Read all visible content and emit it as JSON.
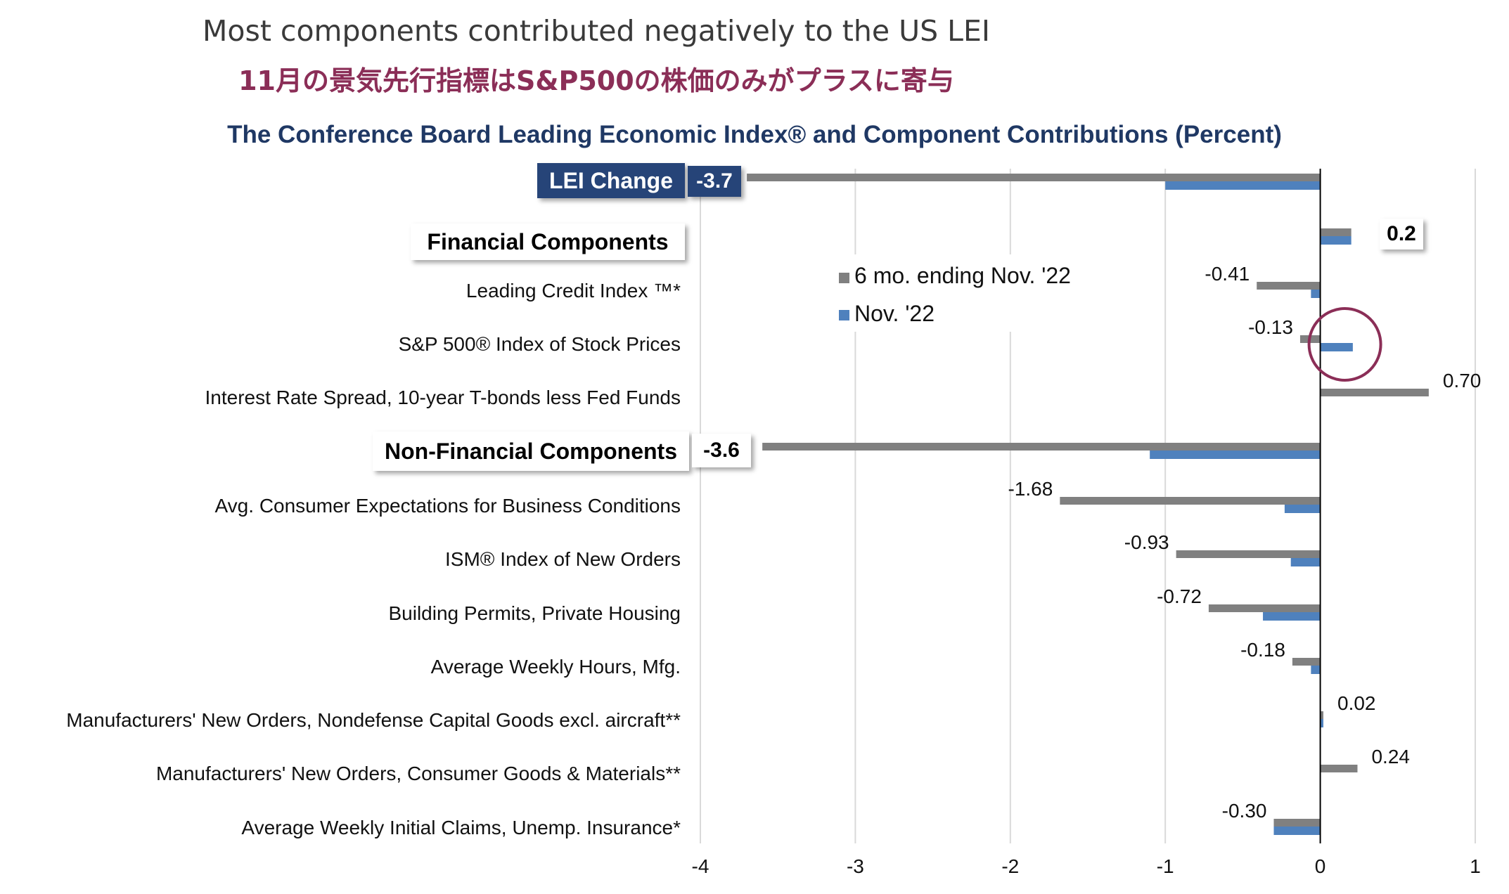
{
  "titles": {
    "main": "Most components contributed negatively to the US LEI",
    "jp": "11月の景気先行指標はS&P500の株価のみがプラスに寄与"
  },
  "chart_data": {
    "type": "bar",
    "orientation": "horizontal",
    "title": "The Conference Board Leading Economic Index® and Component Contributions (Percent)",
    "xlim": [
      -4,
      1
    ],
    "xticks": [
      "-4",
      "-3",
      "-2",
      "-1",
      "0",
      "1"
    ],
    "grid": true,
    "legend_position": "upper-middle",
    "categories": [
      "LEI Change",
      "Financial Components",
      "Leading Credit Index ™*",
      "S&P 500® Index of Stock Prices",
      "Interest Rate Spread, 10-year T-bonds less Fed Funds",
      "Non-Financial Components",
      "Avg. Consumer Expectations for Business Conditions",
      "ISM® Index of New Orders",
      "Building Permits, Private Housing",
      "Average Weekly Hours, Mfg.",
      "Manufacturers' New Orders, Nondefense Capital Goods excl. aircraft**",
      "Manufacturers' New Orders, Consumer Goods & Materials**",
      "Average Weekly Initial Claims, Unemp. Insurance*"
    ],
    "series": [
      {
        "name": "6 mo. ending Nov. '22",
        "color": "#808080",
        "values": [
          -3.7,
          0.2,
          -0.41,
          -0.13,
          0.7,
          -3.6,
          -1.68,
          -0.93,
          -0.72,
          -0.18,
          0.02,
          0.24,
          -0.3
        ]
      },
      {
        "name": "Nov. '22",
        "color": "#4f81bd",
        "values": [
          -1.0,
          0.2,
          -0.06,
          0.21,
          0.0,
          -1.1,
          -0.23,
          -0.19,
          -0.37,
          -0.06,
          0.02,
          0.0,
          -0.3
        ]
      }
    ],
    "data_labels": [
      "-3.7",
      "0.2",
      "-0.41",
      "-0.13",
      "0.70",
      "-3.6",
      "-1.68",
      "-0.93",
      "-0.72",
      "-0.18",
      "0.02",
      "0.24",
      "-0.30"
    ],
    "highlight": "S&P 500® Index of Stock Prices"
  },
  "colors": {
    "bar6mo": "#808080",
    "barNov": "#4f81bd",
    "grid": "#d9d9d9",
    "axis": "#000000",
    "circle": "#8b2e57",
    "darkBox": "#264478"
  }
}
